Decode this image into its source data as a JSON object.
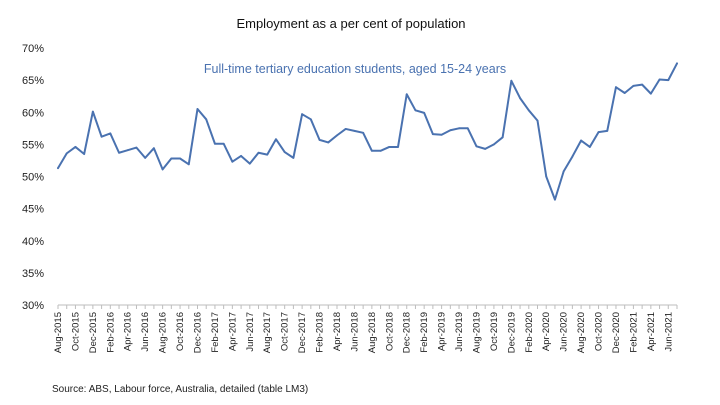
{
  "chart_data": {
    "type": "line",
    "title": "Employment as a per cent of population",
    "annotation": "Full-time tertiary education students, aged 15-24 years",
    "source": "Source: ABS, Labour force, Australia, detailed (table LM3)",
    "xlabel": "",
    "ylabel": "",
    "ylim": [
      30,
      70
    ],
    "yticks": [
      "30%",
      "35%",
      "40%",
      "45%",
      "50%",
      "55%",
      "60%",
      "65%",
      "70%"
    ],
    "grid": false,
    "line_color": "#4a72b0",
    "x": [
      "Aug-2015",
      "Sep-2015",
      "Oct-2015",
      "Nov-2015",
      "Dec-2015",
      "Jan-2016",
      "Feb-2016",
      "Mar-2016",
      "Apr-2016",
      "May-2016",
      "Jun-2016",
      "Jul-2016",
      "Aug-2016",
      "Sep-2016",
      "Oct-2016",
      "Nov-2016",
      "Dec-2016",
      "Jan-2017",
      "Feb-2017",
      "Mar-2017",
      "Apr-2017",
      "May-2017",
      "Jun-2017",
      "Jul-2017",
      "Aug-2017",
      "Sep-2017",
      "Oct-2017",
      "Nov-2017",
      "Dec-2017",
      "Jan-2018",
      "Feb-2018",
      "Mar-2018",
      "Apr-2018",
      "May-2018",
      "Jun-2018",
      "Jul-2018",
      "Aug-2018",
      "Sep-2018",
      "Oct-2018",
      "Nov-2018",
      "Dec-2018",
      "Jan-2019",
      "Feb-2019",
      "Mar-2019",
      "Apr-2019",
      "May-2019",
      "Jun-2019",
      "Jul-2019",
      "Aug-2019",
      "Sep-2019",
      "Oct-2019",
      "Nov-2019",
      "Dec-2019",
      "Jan-2020",
      "Feb-2020",
      "Mar-2020",
      "Apr-2020",
      "May-2020",
      "Jun-2020",
      "Jul-2020",
      "Aug-2020",
      "Sep-2020",
      "Oct-2020",
      "Nov-2020",
      "Dec-2020",
      "Jan-2021",
      "Feb-2021",
      "Mar-2021",
      "Apr-2021",
      "May-2021",
      "Jun-2021",
      "Jul-2021"
    ],
    "x_tick_labels": [
      "Aug-2015",
      "Oct-2015",
      "Dec-2015",
      "Feb-2016",
      "Apr-2016",
      "Jun-2016",
      "Aug-2016",
      "Oct-2016",
      "Dec-2016",
      "Feb-2017",
      "Apr-2017",
      "Jun-2017",
      "Aug-2017",
      "Oct-2017",
      "Dec-2017",
      "Feb-2018",
      "Apr-2018",
      "Jun-2018",
      "Aug-2018",
      "Oct-2018",
      "Dec-2018",
      "Feb-2019",
      "Apr-2019",
      "Jun-2019",
      "Aug-2019",
      "Oct-2019",
      "Dec-2019",
      "Feb-2020",
      "Apr-2020",
      "Jun-2020",
      "Aug-2020",
      "Oct-2020",
      "Dec-2020",
      "Feb-2021",
      "Apr-2021",
      "Jun-2021"
    ],
    "series": [
      {
        "name": "Full-time tertiary education students, aged 15-24 years",
        "values": [
          51.3,
          53.6,
          54.6,
          53.5,
          60.1,
          56.2,
          56.7,
          53.7,
          54.1,
          54.5,
          52.9,
          54.4,
          51.1,
          52.8,
          52.8,
          51.9,
          60.5,
          58.9,
          55.1,
          55.1,
          52.3,
          53.2,
          52.0,
          53.7,
          53.4,
          55.8,
          53.8,
          52.9,
          59.7,
          58.9,
          55.7,
          55.3,
          56.4,
          57.4,
          57.1,
          56.8,
          54.0,
          54.0,
          54.6,
          54.6,
          62.8,
          60.3,
          59.9,
          56.6,
          56.5,
          57.2,
          57.5,
          57.5,
          54.7,
          54.3,
          55.0,
          56.1,
          64.9,
          62.2,
          60.3,
          58.7,
          50.0,
          46.4,
          50.8,
          53.1,
          55.6,
          54.6,
          56.9,
          57.1,
          63.9,
          63.0,
          64.1,
          64.3,
          62.9,
          65.1,
          65.0,
          67.6
        ]
      }
    ]
  }
}
